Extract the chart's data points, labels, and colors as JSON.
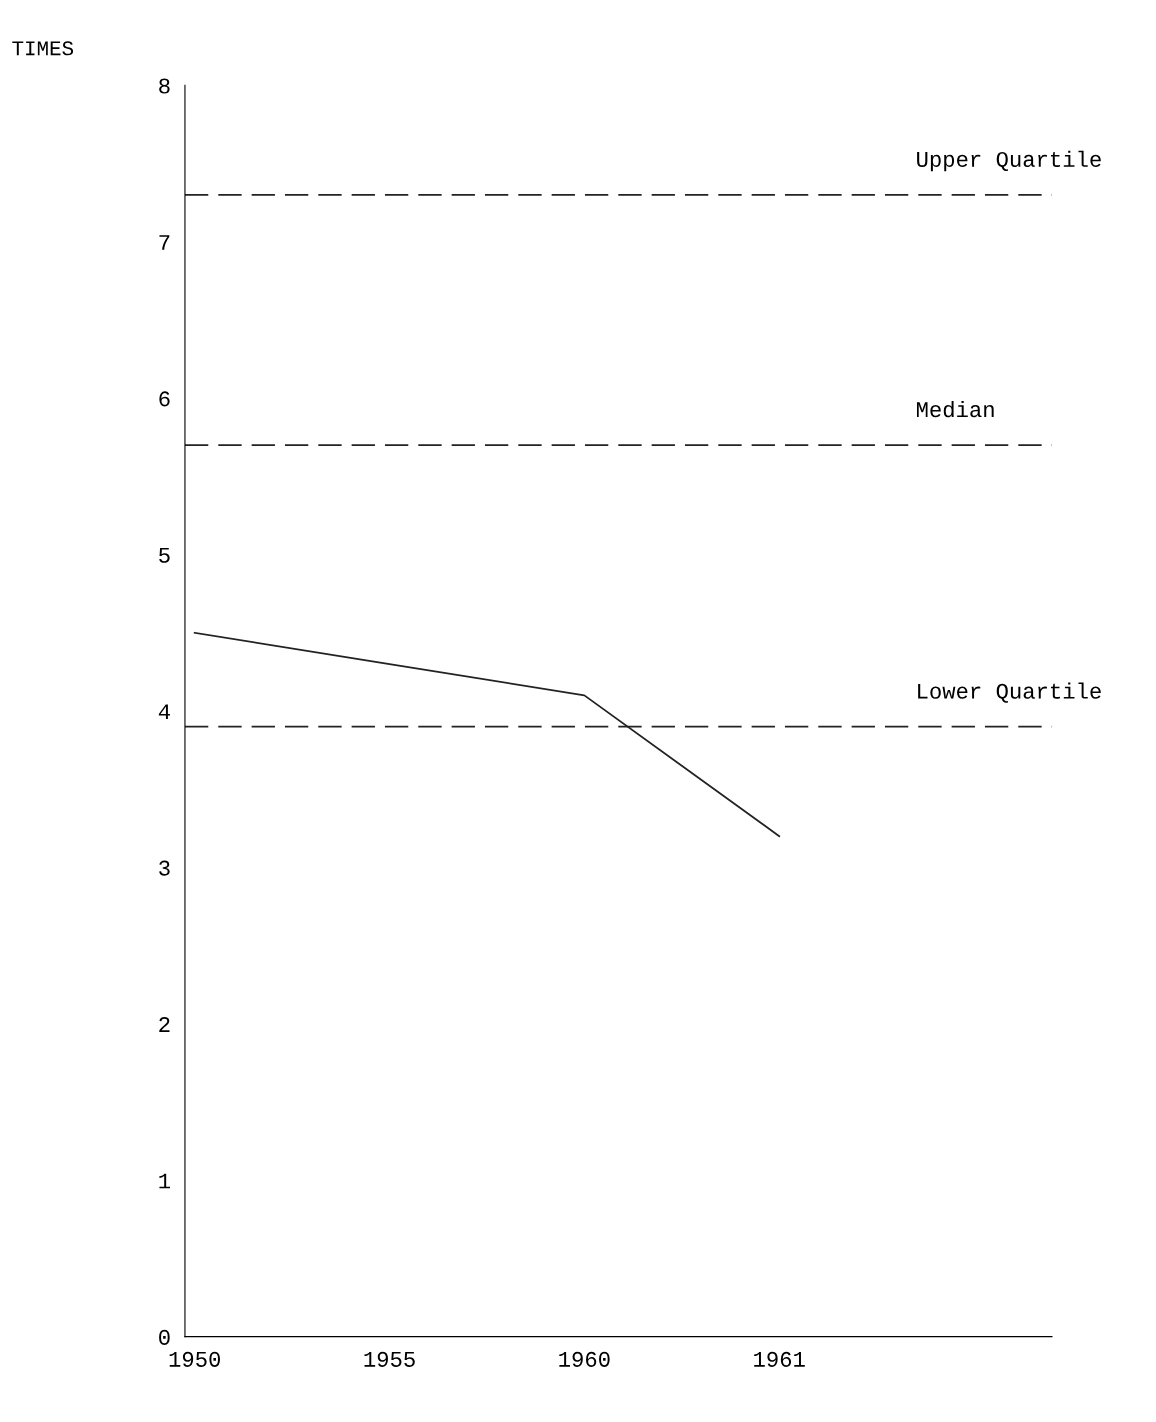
{
  "chart_data": {
    "type": "line",
    "ylabel": "TIMES",
    "categories": [
      "1950",
      "1955",
      "1960",
      "1961"
    ],
    "series": [
      {
        "color": "#222222",
        "values": [
          4.5,
          4.3,
          4.1,
          3.2
        ]
      }
    ],
    "ylim": [
      0,
      8
    ],
    "yticks": [
      0,
      1,
      2,
      3,
      4,
      5,
      6,
      7,
      8
    ],
    "ref_lines": [
      {
        "axis": "y",
        "value": 7.3,
        "label": "Upper Quartile",
        "color": "#222222",
        "line_style": "dashed"
      },
      {
        "axis": "y",
        "value": 5.7,
        "label": "Median",
        "color": "#222222",
        "line_style": "dashed"
      },
      {
        "axis": "y",
        "value": 3.9,
        "label": "Lower Quartile",
        "color": "#222222",
        "line_style": "dashed"
      }
    ],
    "grid": false,
    "legend": false,
    "marker": "none",
    "line_style": "solid"
  }
}
